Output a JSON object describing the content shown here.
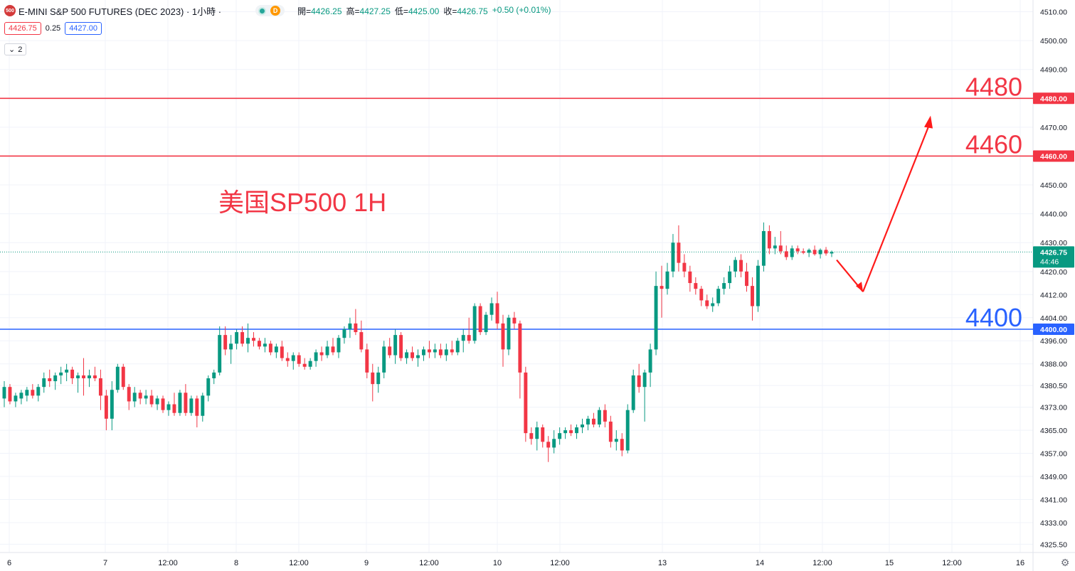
{
  "header": {
    "symbol_badge": "500",
    "title": "E-MINI S&P 500 FUTURES (DEC 2023) · 1小時 ·",
    "delay_badge": "D",
    "ohlc": {
      "open_label": "開=",
      "open": "4426.25",
      "high_label": "高=",
      "high": "4427.25",
      "low_label": "低=",
      "low": "4425.00",
      "close_label": "收=",
      "close": "4426.75",
      "change": "+0.50 (+0.01%)"
    }
  },
  "quote": {
    "sell": "4426.75",
    "spread": "0.25",
    "buy": "4427.00"
  },
  "collapse": {
    "count": "2",
    "icon": "chevron-down-icon"
  },
  "colors": {
    "up": "#089981",
    "down": "#f23645",
    "support": "#2962ff",
    "resistance": "#f23645",
    "arrow": "#ff1a1a",
    "annotation": "#f23645"
  },
  "chart_data": {
    "type": "candlestick",
    "annotation": "美国SP500 1H",
    "ylim": [
      4322,
      4514
    ],
    "y_ticks": [
      "4510.00",
      "4500.00",
      "4490.00",
      "4480.00",
      "4470.00",
      "4460.00",
      "4450.00",
      "4440.00",
      "4430.00",
      "4420.00",
      "4412.00",
      "4404.00",
      "4396.00",
      "4388.00",
      "4380.50",
      "4373.00",
      "4365.00",
      "4357.00",
      "4349.00",
      "4341.00",
      "4333.00",
      "4325.50"
    ],
    "x_ticks": [
      "6",
      "7",
      "12:00",
      "8",
      "12:00",
      "9",
      "12:00",
      "10",
      "12:00",
      "13",
      "14",
      "12:00",
      "15",
      "12:00",
      "16"
    ],
    "horizontal_lines": [
      {
        "price": 4480,
        "label": "4480.00",
        "text": "4480",
        "color": "#f23645"
      },
      {
        "price": 4460,
        "label": "4460.00",
        "text": "4460",
        "color": "#f23645"
      },
      {
        "price": 4400,
        "label": "4400.00",
        "text": "4400",
        "color": "#2962ff"
      }
    ],
    "last_price": {
      "value": 4426.75,
      "label": "4426.75",
      "countdown": "44:46"
    },
    "projection": [
      [
        4424,
        4413
      ],
      [
        4413,
        4474
      ]
    ],
    "candles": [
      {
        "o": 4376,
        "h": 4382,
        "l": 4373,
        "c": 4380
      },
      {
        "o": 4380,
        "h": 4381,
        "l": 4374,
        "c": 4375
      },
      {
        "o": 4375,
        "h": 4378,
        "l": 4373,
        "c": 4377
      },
      {
        "o": 4376,
        "h": 4379,
        "l": 4374,
        "c": 4378
      },
      {
        "o": 4377,
        "h": 4380,
        "l": 4375,
        "c": 4379
      },
      {
        "o": 4379,
        "h": 4381,
        "l": 4376,
        "c": 4377
      },
      {
        "o": 4377,
        "h": 4381,
        "l": 4375,
        "c": 4380
      },
      {
        "o": 4380,
        "h": 4385,
        "l": 4378,
        "c": 4383
      },
      {
        "o": 4383,
        "h": 4386,
        "l": 4380,
        "c": 4382
      },
      {
        "o": 4382,
        "h": 4385,
        "l": 4379,
        "c": 4384
      },
      {
        "o": 4384,
        "h": 4387,
        "l": 4381,
        "c": 4385
      },
      {
        "o": 4385,
        "h": 4388,
        "l": 4382,
        "c": 4386
      },
      {
        "o": 4386,
        "h": 4387,
        "l": 4381,
        "c": 4383
      },
      {
        "o": 4383,
        "h": 4385,
        "l": 4378,
        "c": 4384
      },
      {
        "o": 4384,
        "h": 4390,
        "l": 4377,
        "c": 4383
      },
      {
        "o": 4383,
        "h": 4386,
        "l": 4380,
        "c": 4384
      },
      {
        "o": 4384,
        "h": 4387,
        "l": 4382,
        "c": 4383
      },
      {
        "o": 4383,
        "h": 4386,
        "l": 4372,
        "c": 4377
      },
      {
        "o": 4377,
        "h": 4379,
        "l": 4365,
        "c": 4369
      },
      {
        "o": 4369,
        "h": 4382,
        "l": 4365,
        "c": 4379
      },
      {
        "o": 4379,
        "h": 4388,
        "l": 4378,
        "c": 4387
      },
      {
        "o": 4387,
        "h": 4388,
        "l": 4379,
        "c": 4380
      },
      {
        "o": 4380,
        "h": 4381,
        "l": 4372,
        "c": 4375
      },
      {
        "o": 4375,
        "h": 4380,
        "l": 4373,
        "c": 4378
      },
      {
        "o": 4378,
        "h": 4379,
        "l": 4374,
        "c": 4376
      },
      {
        "o": 4376,
        "h": 4379,
        "l": 4374,
        "c": 4377
      },
      {
        "o": 4377,
        "h": 4379,
        "l": 4373,
        "c": 4374
      },
      {
        "o": 4374,
        "h": 4377,
        "l": 4372,
        "c": 4376
      },
      {
        "o": 4376,
        "h": 4377,
        "l": 4371,
        "c": 4372
      },
      {
        "o": 4372,
        "h": 4375,
        "l": 4370,
        "c": 4374
      },
      {
        "o": 4374,
        "h": 4378,
        "l": 4370,
        "c": 4371
      },
      {
        "o": 4371,
        "h": 4379,
        "l": 4370,
        "c": 4378
      },
      {
        "o": 4378,
        "h": 4381,
        "l": 4370,
        "c": 4371
      },
      {
        "o": 4371,
        "h": 4377,
        "l": 4370,
        "c": 4376
      },
      {
        "o": 4376,
        "h": 4377,
        "l": 4366,
        "c": 4370
      },
      {
        "o": 4370,
        "h": 4378,
        "l": 4368,
        "c": 4377
      },
      {
        "o": 4377,
        "h": 4384,
        "l": 4375,
        "c": 4383
      },
      {
        "o": 4383,
        "h": 4386,
        "l": 4381,
        "c": 4385
      },
      {
        "o": 4385,
        "h": 4401,
        "l": 4384,
        "c": 4398
      },
      {
        "o": 4398,
        "h": 4401,
        "l": 4391,
        "c": 4393
      },
      {
        "o": 4393,
        "h": 4398,
        "l": 4388,
        "c": 4395
      },
      {
        "o": 4395,
        "h": 4400,
        "l": 4393,
        "c": 4399
      },
      {
        "o": 4399,
        "h": 4401,
        "l": 4394,
        "c": 4395
      },
      {
        "o": 4395,
        "h": 4402,
        "l": 4392,
        "c": 4397
      },
      {
        "o": 4397,
        "h": 4399,
        "l": 4394,
        "c": 4396
      },
      {
        "o": 4396,
        "h": 4397,
        "l": 4393,
        "c": 4394
      },
      {
        "o": 4394,
        "h": 4397,
        "l": 4392,
        "c": 4395
      },
      {
        "o": 4395,
        "h": 4396,
        "l": 4391,
        "c": 4392
      },
      {
        "o": 4392,
        "h": 4395,
        "l": 4390,
        "c": 4394
      },
      {
        "o": 4394,
        "h": 4396,
        "l": 4389,
        "c": 4390
      },
      {
        "o": 4390,
        "h": 4392,
        "l": 4387,
        "c": 4389
      },
      {
        "o": 4389,
        "h": 4392,
        "l": 4386,
        "c": 4391
      },
      {
        "o": 4391,
        "h": 4392,
        "l": 4387,
        "c": 4388
      },
      {
        "o": 4388,
        "h": 4390,
        "l": 4386,
        "c": 4387
      },
      {
        "o": 4387,
        "h": 4390,
        "l": 4386,
        "c": 4389
      },
      {
        "o": 4389,
        "h": 4393,
        "l": 4387,
        "c": 4392
      },
      {
        "o": 4392,
        "h": 4394,
        "l": 4389,
        "c": 4391
      },
      {
        "o": 4391,
        "h": 4396,
        "l": 4390,
        "c": 4394
      },
      {
        "o": 4394,
        "h": 4397,
        "l": 4391,
        "c": 4392
      },
      {
        "o": 4392,
        "h": 4398,
        "l": 4390,
        "c": 4397
      },
      {
        "o": 4397,
        "h": 4401,
        "l": 4395,
        "c": 4400
      },
      {
        "o": 4400,
        "h": 4404,
        "l": 4397,
        "c": 4402
      },
      {
        "o": 4402,
        "h": 4407,
        "l": 4398,
        "c": 4399
      },
      {
        "o": 4399,
        "h": 4403,
        "l": 4392,
        "c": 4393
      },
      {
        "o": 4393,
        "h": 4395,
        "l": 4383,
        "c": 4385
      },
      {
        "o": 4385,
        "h": 4388,
        "l": 4375,
        "c": 4381
      },
      {
        "o": 4381,
        "h": 4387,
        "l": 4378,
        "c": 4385
      },
      {
        "o": 4385,
        "h": 4396,
        "l": 4383,
        "c": 4394
      },
      {
        "o": 4394,
        "h": 4397,
        "l": 4390,
        "c": 4391
      },
      {
        "o": 4391,
        "h": 4400,
        "l": 4388,
        "c": 4398
      },
      {
        "o": 4398,
        "h": 4399,
        "l": 4389,
        "c": 4390
      },
      {
        "o": 4390,
        "h": 4393,
        "l": 4388,
        "c": 4392
      },
      {
        "o": 4392,
        "h": 4394,
        "l": 4389,
        "c": 4390
      },
      {
        "o": 4390,
        "h": 4393,
        "l": 4387,
        "c": 4391
      },
      {
        "o": 4391,
        "h": 4394,
        "l": 4389,
        "c": 4393
      },
      {
        "o": 4393,
        "h": 4396,
        "l": 4390,
        "c": 4392
      },
      {
        "o": 4392,
        "h": 4395,
        "l": 4390,
        "c": 4393
      },
      {
        "o": 4393,
        "h": 4395,
        "l": 4390,
        "c": 4391
      },
      {
        "o": 4391,
        "h": 4395,
        "l": 4389,
        "c": 4393
      },
      {
        "o": 4393,
        "h": 4396,
        "l": 4391,
        "c": 4392
      },
      {
        "o": 4392,
        "h": 4397,
        "l": 4391,
        "c": 4396
      },
      {
        "o": 4396,
        "h": 4400,
        "l": 4392,
        "c": 4398
      },
      {
        "o": 4398,
        "h": 4404,
        "l": 4395,
        "c": 4396
      },
      {
        "o": 4396,
        "h": 4409,
        "l": 4395,
        "c": 4408
      },
      {
        "o": 4408,
        "h": 4409,
        "l": 4398,
        "c": 4399
      },
      {
        "o": 4399,
        "h": 4406,
        "l": 4398,
        "c": 4405
      },
      {
        "o": 4405,
        "h": 4411,
        "l": 4403,
        "c": 4409
      },
      {
        "o": 4409,
        "h": 4413,
        "l": 4400,
        "c": 4402
      },
      {
        "o": 4402,
        "h": 4405,
        "l": 4387,
        "c": 4393
      },
      {
        "o": 4393,
        "h": 4405,
        "l": 4391,
        "c": 4404
      },
      {
        "o": 4404,
        "h": 4406,
        "l": 4400,
        "c": 4402
      },
      {
        "o": 4402,
        "h": 4403,
        "l": 4376,
        "c": 4385
      },
      {
        "o": 4385,
        "h": 4387,
        "l": 4361,
        "c": 4364
      },
      {
        "o": 4364,
        "h": 4366,
        "l": 4360,
        "c": 4362
      },
      {
        "o": 4362,
        "h": 4368,
        "l": 4358,
        "c": 4366
      },
      {
        "o": 4366,
        "h": 4367,
        "l": 4359,
        "c": 4361
      },
      {
        "o": 4361,
        "h": 4363,
        "l": 4354,
        "c": 4359
      },
      {
        "o": 4359,
        "h": 4365,
        "l": 4357,
        "c": 4362
      },
      {
        "o": 4362,
        "h": 4366,
        "l": 4360,
        "c": 4364
      },
      {
        "o": 4364,
        "h": 4366,
        "l": 4362,
        "c": 4365
      },
      {
        "o": 4365,
        "h": 4367,
        "l": 4363,
        "c": 4364
      },
      {
        "o": 4364,
        "h": 4367,
        "l": 4362,
        "c": 4366
      },
      {
        "o": 4366,
        "h": 4369,
        "l": 4364,
        "c": 4367
      },
      {
        "o": 4367,
        "h": 4370,
        "l": 4365,
        "c": 4369
      },
      {
        "o": 4369,
        "h": 4371,
        "l": 4366,
        "c": 4367
      },
      {
        "o": 4367,
        "h": 4373,
        "l": 4366,
        "c": 4372
      },
      {
        "o": 4372,
        "h": 4374,
        "l": 4366,
        "c": 4368
      },
      {
        "o": 4368,
        "h": 4370,
        "l": 4359,
        "c": 4361
      },
      {
        "o": 4361,
        "h": 4365,
        "l": 4358,
        "c": 4362
      },
      {
        "o": 4362,
        "h": 4364,
        "l": 4356,
        "c": 4358
      },
      {
        "o": 4358,
        "h": 4374,
        "l": 4357,
        "c": 4372
      },
      {
        "o": 4372,
        "h": 4386,
        "l": 4371,
        "c": 4384
      },
      {
        "o": 4384,
        "h": 4388,
        "l": 4378,
        "c": 4380
      },
      {
        "o": 4380,
        "h": 4386,
        "l": 4368,
        "c": 4385
      },
      {
        "o": 4385,
        "h": 4395,
        "l": 4380,
        "c": 4393
      },
      {
        "o": 4393,
        "h": 4420,
        "l": 4391,
        "c": 4415
      },
      {
        "o": 4415,
        "h": 4422,
        "l": 4404,
        "c": 4414
      },
      {
        "o": 4414,
        "h": 4423,
        "l": 4412,
        "c": 4420
      },
      {
        "o": 4420,
        "h": 4433,
        "l": 4418,
        "c": 4430
      },
      {
        "o": 4430,
        "h": 4436,
        "l": 4420,
        "c": 4423
      },
      {
        "o": 4423,
        "h": 4426,
        "l": 4418,
        "c": 4420
      },
      {
        "o": 4420,
        "h": 4422,
        "l": 4413,
        "c": 4416
      },
      {
        "o": 4416,
        "h": 4418,
        "l": 4412,
        "c": 4414
      },
      {
        "o": 4414,
        "h": 4415,
        "l": 4408,
        "c": 4410
      },
      {
        "o": 4410,
        "h": 4412,
        "l": 4407,
        "c": 4408
      },
      {
        "o": 4408,
        "h": 4411,
        "l": 4406,
        "c": 4409
      },
      {
        "o": 4409,
        "h": 4415,
        "l": 4408,
        "c": 4414
      },
      {
        "o": 4414,
        "h": 4418,
        "l": 4412,
        "c": 4416
      },
      {
        "o": 4416,
        "h": 4422,
        "l": 4414,
        "c": 4420
      },
      {
        "o": 4420,
        "h": 4425,
        "l": 4418,
        "c": 4424
      },
      {
        "o": 4424,
        "h": 4426,
        "l": 4418,
        "c": 4420
      },
      {
        "o": 4420,
        "h": 4423,
        "l": 4413,
        "c": 4415
      },
      {
        "o": 4415,
        "h": 4418,
        "l": 4403,
        "c": 4408
      },
      {
        "o": 4408,
        "h": 4424,
        "l": 4406,
        "c": 4422
      },
      {
        "o": 4422,
        "h": 4437,
        "l": 4420,
        "c": 4434
      },
      {
        "o": 4434,
        "h": 4436,
        "l": 4426,
        "c": 4428
      },
      {
        "o": 4428,
        "h": 4432,
        "l": 4426,
        "c": 4429
      },
      {
        "o": 4429,
        "h": 4434,
        "l": 4426,
        "c": 4427
      },
      {
        "o": 4427,
        "h": 4429,
        "l": 4424,
        "c": 4425
      },
      {
        "o": 4425,
        "h": 4429,
        "l": 4424,
        "c": 4428
      },
      {
        "o": 4428,
        "h": 4429,
        "l": 4426,
        "c": 4427
      },
      {
        "o": 4427,
        "h": 4428,
        "l": 4426,
        "c": 4426.5
      },
      {
        "o": 4426.5,
        "h": 4428,
        "l": 4425,
        "c": 4427.5
      },
      {
        "o": 4427.5,
        "h": 4429,
        "l": 4425.5,
        "c": 4426
      },
      {
        "o": 4426,
        "h": 4428,
        "l": 4424.5,
        "c": 4427.5
      },
      {
        "o": 4427.5,
        "h": 4428.5,
        "l": 4425.5,
        "c": 4426.25
      },
      {
        "o": 4426.25,
        "h": 4427.25,
        "l": 4425,
        "c": 4426.75
      }
    ]
  }
}
